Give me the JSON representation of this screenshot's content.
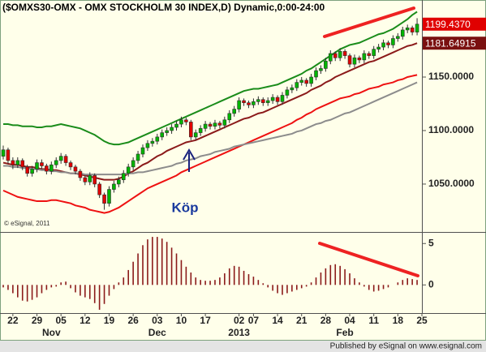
{
  "chart_data": [
    {
      "type": "candlestick",
      "title": "($OMXS30-OMX - OMX STOCKHOLM 30 INDEX,D) Dynamic,0:00-24:00",
      "copyright": "© eSignal, 2011",
      "annotation": "Köp",
      "up_color": "#00b400",
      "down_color": "#e00000",
      "open": [
        1076,
        1082,
        1072,
        1068,
        1072,
        1066,
        1060,
        1064,
        1070,
        1067,
        1062,
        1068,
        1072,
        1076,
        1070,
        1066,
        1062,
        1056,
        1052,
        1058,
        1050,
        1040,
        1032,
        1045,
        1050,
        1054,
        1060,
        1066,
        1072,
        1078,
        1084,
        1088,
        1090,
        1094,
        1098,
        1100,
        1103,
        1106,
        1110,
        1108,
        1094,
        1098,
        1102,
        1106,
        1104,
        1107,
        1105,
        1110,
        1116,
        1120,
        1128,
        1126,
        1124,
        1127,
        1129,
        1126,
        1128,
        1131,
        1127,
        1133,
        1138,
        1140,
        1145,
        1147,
        1144,
        1150,
        1156,
        1158,
        1165,
        1172,
        1168,
        1174,
        1170,
        1162,
        1168,
        1166,
        1172,
        1170,
        1176,
        1178,
        1182,
        1180,
        1186,
        1188,
        1194,
        1196,
        1192,
        null
      ],
      "high": [
        1086,
        1084,
        1075,
        1075,
        1074,
        1068,
        1067,
        1073,
        1073,
        1069,
        1071,
        1075,
        1079,
        1078,
        1072,
        1068,
        1064,
        1058,
        1061,
        1060,
        1052,
        1042,
        1048,
        1053,
        1057,
        1063,
        1069,
        1075,
        1081,
        1087,
        1091,
        1093,
        1097,
        1101,
        1103,
        1106,
        1109,
        1113,
        1112,
        1110,
        1101,
        1105,
        1109,
        1108,
        1110,
        1109,
        1113,
        1119,
        1123,
        1131,
        1130,
        1128,
        1130,
        1132,
        1131,
        1131,
        1134,
        1133,
        1136,
        1141,
        1143,
        1148,
        1150,
        1149,
        1153,
        1159,
        1161,
        1168,
        1175,
        1174,
        1177,
        1176,
        1172,
        1171,
        1170,
        1175,
        1174,
        1179,
        1181,
        1185,
        1184,
        1189,
        1191,
        1197,
        1199,
        1198,
        1205,
        null
      ],
      "low": [
        1073,
        1069,
        1064,
        1065,
        1063,
        1057,
        1057,
        1061,
        1064,
        1059,
        1059,
        1065,
        1069,
        1067,
        1063,
        1059,
        1053,
        1049,
        1049,
        1047,
        1037,
        1026,
        1029,
        1042,
        1047,
        1051,
        1057,
        1063,
        1069,
        1075,
        1081,
        1085,
        1087,
        1091,
        1095,
        1097,
        1100,
        1103,
        1105,
        1091,
        1091,
        1095,
        1099,
        1101,
        1101,
        1102,
        1102,
        1107,
        1113,
        1117,
        1123,
        1121,
        1121,
        1124,
        1123,
        1123,
        1125,
        1124,
        1124,
        1130,
        1135,
        1137,
        1142,
        1141,
        1141,
        1147,
        1153,
        1155,
        1162,
        1165,
        1165,
        1167,
        1159,
        1159,
        1163,
        1163,
        1167,
        1167,
        1173,
        1175,
        1177,
        1177,
        1183,
        1185,
        1191,
        1189,
        1189,
        null
      ],
      "close": [
        1082,
        1072,
        1068,
        1072,
        1066,
        1060,
        1064,
        1070,
        1067,
        1062,
        1068,
        1072,
        1076,
        1070,
        1066,
        1062,
        1056,
        1052,
        1058,
        1050,
        1040,
        1032,
        1045,
        1050,
        1054,
        1060,
        1066,
        1072,
        1078,
        1084,
        1088,
        1090,
        1094,
        1098,
        1100,
        1103,
        1106,
        1110,
        1108,
        1094,
        1098,
        1102,
        1106,
        1104,
        1107,
        1105,
        1110,
        1116,
        1120,
        1128,
        1126,
        1124,
        1127,
        1129,
        1126,
        1128,
        1131,
        1127,
        1133,
        1138,
        1140,
        1145,
        1147,
        1144,
        1150,
        1156,
        1158,
        1165,
        1172,
        1168,
        1174,
        1170,
        1162,
        1168,
        1166,
        1172,
        1170,
        1176,
        1178,
        1182,
        1180,
        1186,
        1188,
        1194,
        1196,
        1192,
        1199.437,
        null
      ],
      "series": [
        {
          "color": "#1a8c1a",
          "values": [
            1106,
            1106,
            1105,
            1105,
            1104,
            1104,
            1104,
            1103,
            1103,
            1104,
            1104,
            1105,
            1106,
            1105,
            1104,
            1103,
            1102,
            1100,
            1098,
            1096,
            1093,
            1090,
            1088,
            1087,
            1087,
            1088,
            1089,
            1091,
            1093,
            1095,
            1097,
            1099,
            1101,
            1103,
            1105,
            1107,
            1109,
            1111,
            1113,
            1115,
            1117,
            1119,
            1121,
            1123,
            1125,
            1127,
            1129,
            1131,
            1133,
            1135,
            1137,
            1138,
            1139,
            1139,
            1140,
            1141,
            1142,
            1143,
            1145,
            1147,
            1149,
            1151,
            1153,
            1156,
            1158,
            1161,
            1164,
            1167,
            1170,
            1173,
            1176,
            1178,
            1180,
            1181,
            1182,
            1184,
            1186,
            1188,
            1190,
            1191,
            1193,
            1195,
            1198,
            1201,
            1204,
            1208,
            1211,
            null
          ]
        },
        {
          "color": "#ee1111",
          "values": [
            1044,
            1042,
            1040,
            1038,
            1037,
            1036,
            1035,
            1034,
            1034,
            1034,
            1035,
            1035,
            1034,
            1033,
            1032,
            1030,
            1029,
            1028,
            1026,
            1025,
            1024,
            1023,
            1024,
            1026,
            1028,
            1031,
            1034,
            1037,
            1040,
            1043,
            1046,
            1048,
            1050,
            1052,
            1054,
            1056,
            1058,
            1061,
            1063,
            1065,
            1067,
            1069,
            1071,
            1073,
            1075,
            1077,
            1079,
            1081,
            1083,
            1085,
            1087,
            1089,
            1091,
            1093,
            1095,
            1097,
            1099,
            1101,
            1103,
            1105,
            1107,
            1110,
            1112,
            1115,
            1117,
            1120,
            1122,
            1124,
            1126,
            1128,
            1130,
            1131,
            1132,
            1134,
            1135,
            1137,
            1139,
            1140,
            1141,
            1143,
            1144,
            1145,
            1147,
            1148,
            1150,
            1151,
            1152,
            null
          ]
        },
        {
          "color": "#8b1a1a",
          "values": [
            1070,
            1069,
            1068,
            1068,
            1067,
            1066,
            1066,
            1065,
            1064,
            1064,
            1063,
            1063,
            1062,
            1061,
            1060,
            1060,
            1059,
            1058,
            1057,
            1056,
            1055,
            1054,
            1054,
            1054,
            1055,
            1057,
            1060,
            1062,
            1065,
            1068,
            1070,
            1073,
            1076,
            1078,
            1081,
            1083,
            1085,
            1087,
            1089,
            1090,
            1091,
            1093,
            1095,
            1097,
            1099,
            1101,
            1103,
            1105,
            1107,
            1109,
            1111,
            1112,
            1114,
            1116,
            1117,
            1119,
            1121,
            1123,
            1125,
            1127,
            1129,
            1131,
            1133,
            1135,
            1138,
            1140,
            1142,
            1145,
            1147,
            1150,
            1152,
            1154,
            1156,
            1158,
            1160,
            1162,
            1164,
            1165,
            1167,
            1169,
            1171,
            1173,
            1175,
            1177,
            1179,
            1180,
            1181.64915,
            null
          ]
        },
        {
          "color": "#8c8c8c",
          "values": [
            1067,
            1067,
            1066,
            1066,
            1065,
            1065,
            1064,
            1064,
            1063,
            1063,
            1062,
            1062,
            1061,
            1061,
            1060,
            1060,
            1060,
            1059,
            1059,
            1059,
            1059,
            1059,
            1059,
            1059,
            1059,
            1059,
            1060,
            1060,
            1061,
            1061,
            1062,
            1063,
            1064,
            1065,
            1066,
            1067,
            1069,
            1070,
            1072,
            1073,
            1074,
            1076,
            1077,
            1078,
            1080,
            1081,
            1082,
            1083,
            1085,
            1086,
            1087,
            1088,
            1089,
            1090,
            1091,
            1092,
            1093,
            1094,
            1095,
            1096,
            1097,
            1099,
            1100,
            1102,
            1104,
            1106,
            1107,
            1109,
            1110,
            1112,
            1114,
            1116,
            1117,
            1119,
            1121,
            1123,
            1125,
            1127,
            1129,
            1131,
            1133,
            1135,
            1137,
            1139,
            1141,
            1143,
            1145,
            null
          ]
        }
      ],
      "price_flags": [
        {
          "value": 1199.437,
          "label": "1199.4370",
          "color": "#e00000"
        },
        {
          "value": 1181.64915,
          "color": "#7a1010"
        }
      ],
      "ylim": [
        1006,
        1222
      ],
      "yticks": [
        {
          "value": 1050,
          "label": "1050.0000"
        },
        {
          "value": 1100,
          "label": "1100.0000"
        },
        {
          "value": 1150,
          "label": "1150.0000"
        }
      ]
    },
    {
      "type": "bar",
      "color": "#8b1a1a",
      "values": [
        -0.3,
        -0.6,
        -1,
        -1.5,
        -1.9,
        -2,
        -1.8,
        -1.5,
        -1,
        -0.6,
        -0.3,
        -0.2,
        0.3,
        0.4,
        -0.4,
        -0.9,
        -1.3,
        -1.5,
        -1.7,
        -2.2,
        -3,
        -2.3,
        -1.3,
        -0.5,
        0.3,
        0.9,
        1.8,
        2.8,
        3.8,
        4.8,
        5.5,
        5.8,
        5.8,
        5.6,
        5.2,
        4.5,
        3.8,
        3,
        2.2,
        1.5,
        0.9,
        0.6,
        0.5,
        0.5,
        0.6,
        0.9,
        1.4,
        2,
        2.3,
        2.2,
        1.7,
        1.3,
        1,
        0.6,
        0.2,
        -0.3,
        -0.7,
        -1,
        -1.2,
        -1,
        -0.8,
        -0.6,
        -0.4,
        -0.2,
        0.3,
        0.9,
        1.5,
        2,
        2.4,
        2.5,
        2.3,
        1.9,
        1.4,
        0.8,
        0.3,
        -0.2,
        -0.6,
        -0.8,
        -0.7,
        -0.5,
        -0.3,
        0,
        0.3,
        0.6,
        0.8,
        0.7,
        0.6,
        null
      ],
      "categories": [
        null,
        null,
        "22",
        null,
        null,
        null,
        null,
        "29",
        null,
        null,
        null,
        null,
        "05",
        null,
        null,
        null,
        null,
        "12",
        null,
        null,
        null,
        null,
        "19",
        null,
        null,
        null,
        null,
        "26",
        null,
        null,
        null,
        null,
        "03",
        null,
        null,
        null,
        null,
        "10",
        null,
        null,
        null,
        null,
        "17",
        null,
        null,
        null,
        null,
        null,
        null,
        "02",
        null,
        null,
        "07",
        null,
        null,
        null,
        null,
        "14",
        null,
        null,
        null,
        null,
        "21",
        null,
        null,
        null,
        null,
        "28",
        null,
        null,
        null,
        null,
        "04",
        null,
        null,
        null,
        null,
        "11",
        null,
        null,
        null,
        null,
        "18",
        null,
        null,
        null,
        null,
        "25"
      ],
      "months": [
        null,
        null,
        null,
        null,
        null,
        null,
        null,
        null,
        null,
        null,
        "Nov",
        null,
        null,
        null,
        null,
        null,
        null,
        null,
        null,
        null,
        null,
        null,
        null,
        null,
        null,
        null,
        null,
        null,
        null,
        null,
        null,
        null,
        "Dec",
        null,
        null,
        null,
        null,
        null,
        null,
        null,
        null,
        null,
        null,
        null,
        null,
        null,
        null,
        null,
        null,
        "2013",
        null,
        null,
        null,
        null,
        null,
        null,
        null,
        null,
        null,
        null,
        null,
        null,
        null,
        null,
        null,
        null,
        null,
        null,
        null,
        null,
        null,
        "Feb",
        null,
        null,
        null,
        null,
        null,
        null,
        null,
        null,
        null,
        null,
        null,
        null,
        null,
        null,
        null,
        null
      ],
      "ylim": [
        -3.4,
        6.2
      ],
      "yticks": [
        5,
        0
      ]
    }
  ],
  "footer": "Published by eSignal on www.esignal.com"
}
